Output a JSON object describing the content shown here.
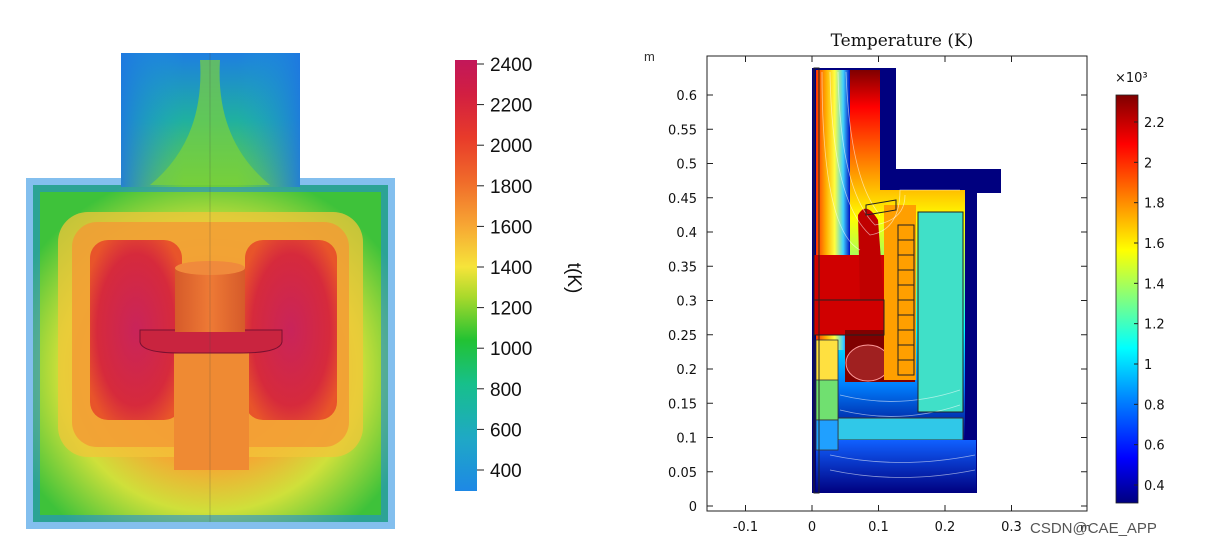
{
  "watermark": "CSDN@CAE_APP",
  "chart_data": [
    {
      "type": "heatmap",
      "title": "",
      "colorbar": {
        "label": "t(K)",
        "ticks": [
          2400,
          2200,
          2000,
          1800,
          1600,
          1400,
          1200,
          1000,
          800,
          600,
          400
        ],
        "range": [
          300,
          2450
        ],
        "colors": [
          "#1e88e5",
          "#1fa8c6",
          "#17c08a",
          "#22c233",
          "#a8d92b",
          "#f6e43a",
          "#f7a433",
          "#f06a2a",
          "#e83b2a",
          "#d21f41",
          "#c2175a"
        ]
      },
      "zones": {
        "outer_field": "~1100-1300 K",
        "hot_regions": "~2300-2400 K",
        "top_chimney": "~600-1000 K"
      }
    },
    {
      "type": "heatmap",
      "title": "Temperature (K)",
      "xlabel": "",
      "ylabel": "m",
      "x_ticks": [
        "-0.1",
        "0",
        "0.1",
        "0.2",
        "0.3"
      ],
      "x_unit_label": "m",
      "y_ticks": [
        "0",
        "0.05",
        "0.1",
        "0.15",
        "0.2",
        "0.25",
        "0.3",
        "0.35",
        "0.4",
        "0.45",
        "0.5",
        "0.55",
        "0.6"
      ],
      "xlim": [
        -0.15,
        0.4
      ],
      "ylim": [
        -0.01,
        0.65
      ],
      "colorbar": {
        "multiplier": "×10³",
        "ticks": [
          "2.2",
          "2",
          "1.8",
          "1.6",
          "1.4",
          "1.2",
          "1",
          "0.8",
          "0.6",
          "0.4"
        ],
        "range": [
          0.3,
          2.3
        ],
        "colors": [
          "#00007f",
          "#0000ff",
          "#0080ff",
          "#00ffff",
          "#80ff80",
          "#ffff00",
          "#ff8000",
          "#ff0000",
          "#7f0000"
        ]
      }
    }
  ]
}
